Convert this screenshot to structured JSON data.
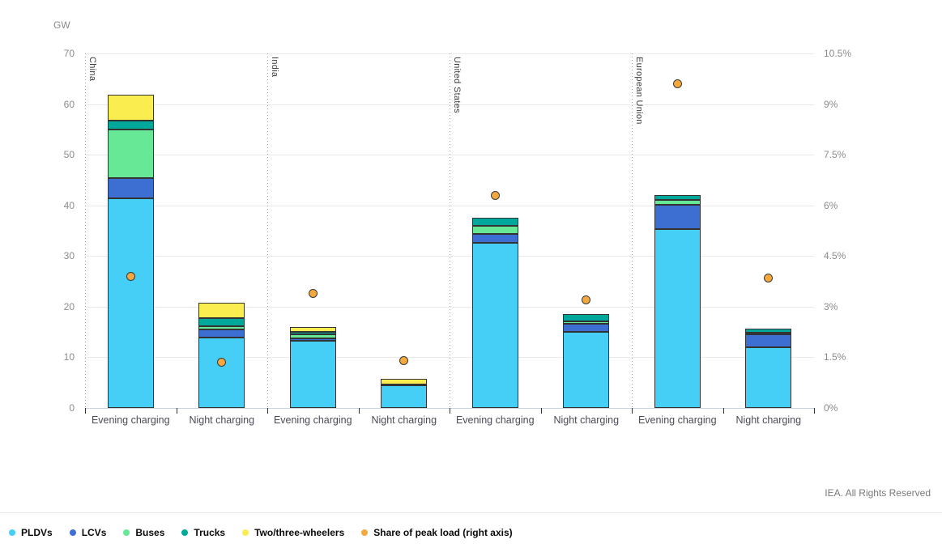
{
  "page": {
    "gw_axis_label": "GW",
    "footer_credit": "IEA. All Rights Reserved"
  },
  "colors": {
    "PLDVs": "#45CFF7",
    "LCVs": "#3D6FD2",
    "Buses": "#66E896",
    "Trucks": "#00A79B",
    "Two/three-wheelers": "#F9ED4F",
    "share_dot": "#F4A83E",
    "segment_border": "#333333"
  },
  "legend": [
    {
      "label": "PLDVs",
      "color": "#45CFF7"
    },
    {
      "label": "LCVs",
      "color": "#3D6FD2"
    },
    {
      "label": "Buses",
      "color": "#66E896"
    },
    {
      "label": "Trucks",
      "color": "#00A79B"
    },
    {
      "label": "Two/three-wheelers",
      "color": "#F9ED4F"
    },
    {
      "label": "Share of peak load (right axis)",
      "color": "#F4A83E"
    }
  ],
  "chart_data": {
    "type": "bar",
    "stacked": true,
    "title": "",
    "ylabel_left": "GW",
    "ylim_left": [
      0,
      70
    ],
    "left_ticks": [
      0,
      10,
      20,
      30,
      40,
      50,
      60,
      70
    ],
    "ylim_right_pct": [
      0,
      10.5
    ],
    "right_tick_labels": [
      "0%",
      "1.5%",
      "3%",
      "4.5%",
      "6%",
      "7.5%",
      "9%",
      "10.5%"
    ],
    "grid": true,
    "legend_position": "bottom-left",
    "series_names": [
      "PLDVs",
      "LCVs",
      "Buses",
      "Trucks",
      "Two/three-wheelers"
    ],
    "scatter_series_name": "Share of peak load (right axis)",
    "groups": [
      {
        "region": "China",
        "bars": [
          {
            "category": "Evening charging",
            "segments_gw": [
              41.4,
              4.0,
              9.6,
              1.7,
              5.2
            ],
            "total_gw": 62,
            "share_of_peak_pct": 3.9
          },
          {
            "category": "Night charging",
            "segments_gw": [
              13.9,
              1.6,
              0.7,
              1.5,
              3.1
            ],
            "total_gw": 20.8,
            "share_of_peak_pct": 1.35
          }
        ]
      },
      {
        "region": "India",
        "bars": [
          {
            "category": "Evening charging",
            "segments_gw": [
              13.3,
              0.4,
              0.9,
              0.4,
              1.0
            ],
            "total_gw": 16,
            "share_of_peak_pct": 3.4
          },
          {
            "category": "Night charging",
            "segments_gw": [
              4.5,
              0,
              0,
              0.1,
              1.2
            ],
            "total_gw": 5.8,
            "share_of_peak_pct": 1.4
          }
        ]
      },
      {
        "region": "United States",
        "bars": [
          {
            "category": "Evening charging",
            "segments_gw": [
              32.6,
              1.7,
              1.6,
              1.6,
              0
            ],
            "total_gw": 37.5,
            "share_of_peak_pct": 6.3
          },
          {
            "category": "Night charging",
            "segments_gw": [
              15.1,
              1.5,
              0.5,
              1.5,
              0
            ],
            "total_gw": 18.6,
            "share_of_peak_pct": 3.2
          }
        ]
      },
      {
        "region": "European Union",
        "bars": [
          {
            "category": "Evening charging",
            "segments_gw": [
              35.3,
              4.8,
              0.9,
              1.0,
              0
            ],
            "total_gw": 42,
            "share_of_peak_pct": 9.6
          },
          {
            "category": "Night charging",
            "segments_gw": [
              12.0,
              2.5,
              0.3,
              0.9,
              0
            ],
            "total_gw": 15.7,
            "share_of_peak_pct": 3.85
          }
        ]
      }
    ]
  }
}
